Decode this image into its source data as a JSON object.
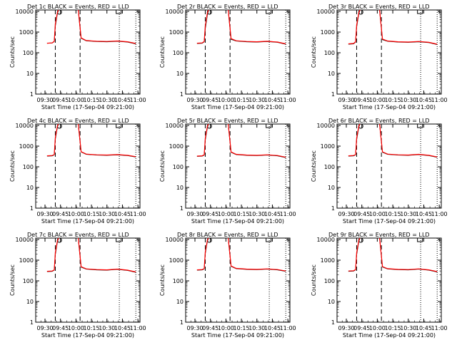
{
  "figure": {
    "xlabel": "Start Time (17-Sep-04 09:21:00)",
    "ylabel": "Counts/sec",
    "x_ticks": [
      "09:30",
      "09:45",
      "10:00",
      "10:15",
      "10:30",
      "10:45",
      "11:00"
    ],
    "y_ticks": [
      "1",
      "10",
      "100",
      "1000",
      "10000"
    ]
  },
  "chart_data": [
    {
      "type": "line",
      "title": "Det 1c BLACK = Events, RED = LLD",
      "yscale": "log",
      "ylim": [
        1,
        10000
      ],
      "x": [
        "09:32",
        "09:37",
        "09:39",
        "09:40",
        "09:42",
        "09:44",
        "09:48",
        "10:02",
        "10:05",
        "10:10",
        "10:20",
        "10:30",
        "10:40",
        "10:50",
        "10:58"
      ],
      "series": [
        {
          "name": "Events",
          "color": "#000000",
          "values": [
            290,
            300,
            350,
            2000,
            8000,
            15000,
            15000,
            15000,
            500,
            380,
            350,
            340,
            360,
            330,
            270
          ]
        },
        {
          "name": "LLD",
          "color": "#ff0000",
          "values": [
            290,
            300,
            360,
            2500,
            9000,
            15000,
            15000,
            15000,
            520,
            390,
            360,
            350,
            370,
            340,
            280
          ]
        }
      ],
      "markers": {
        "dashed": [
          "09:40",
          "10:04"
        ],
        "dotted": [
          "10:42",
          "10:58"
        ]
      }
    },
    {
      "type": "line",
      "title": "Det 2r BLACK = Events, RED = LLD",
      "yscale": "log",
      "ylim": [
        1,
        10000
      ],
      "x": [
        "09:32",
        "09:37",
        "09:39",
        "09:40",
        "09:42",
        "09:44",
        "09:48",
        "10:02",
        "10:05",
        "10:10",
        "10:20",
        "10:30",
        "10:40",
        "10:50",
        "10:58"
      ],
      "series": [
        {
          "name": "Events",
          "color": "#000000",
          "values": [
            280,
            290,
            340,
            1500,
            7000,
            15000,
            15000,
            15000,
            450,
            370,
            340,
            330,
            350,
            320,
            260
          ]
        },
        {
          "name": "LLD",
          "color": "#ff0000",
          "values": [
            290,
            300,
            350,
            2000,
            8500,
            15000,
            15000,
            15000,
            480,
            380,
            350,
            340,
            360,
            330,
            270
          ]
        }
      ],
      "markers": {
        "dashed": [
          "09:40",
          "10:04"
        ],
        "dotted": [
          "10:42",
          "10:58"
        ]
      }
    },
    {
      "type": "line",
      "title": "Det 3r BLACK = Events, RED = LLD",
      "yscale": "log",
      "ylim": [
        1,
        10000
      ],
      "x": [
        "09:32",
        "09:37",
        "09:39",
        "09:40",
        "09:42",
        "09:44",
        "09:48",
        "10:02",
        "10:05",
        "10:10",
        "10:20",
        "10:30",
        "10:40",
        "10:50",
        "10:58"
      ],
      "series": [
        {
          "name": "Events",
          "color": "#000000",
          "values": [
            260,
            270,
            330,
            1800,
            7500,
            15000,
            15000,
            15000,
            430,
            360,
            330,
            320,
            340,
            310,
            250
          ]
        },
        {
          "name": "LLD",
          "color": "#ff0000",
          "values": [
            270,
            280,
            340,
            2200,
            8500,
            15000,
            15000,
            15000,
            460,
            370,
            340,
            330,
            350,
            320,
            260
          ]
        }
      ],
      "markers": {
        "dashed": [
          "09:40",
          "10:04"
        ],
        "dotted": [
          "10:42",
          "10:58"
        ]
      }
    },
    {
      "type": "line",
      "title": "Det 4c BLACK = Events, RED = LLD",
      "yscale": "log",
      "ylim": [
        1,
        10000
      ],
      "x": [
        "09:32",
        "09:37",
        "09:39",
        "09:40",
        "09:42",
        "09:44",
        "09:48",
        "10:02",
        "10:05",
        "10:10",
        "10:20",
        "10:30",
        "10:40",
        "10:50",
        "10:58"
      ],
      "series": [
        {
          "name": "Events",
          "color": "#000000",
          "values": [
            330,
            340,
            380,
            2200,
            8500,
            15000,
            15000,
            15000,
            520,
            400,
            370,
            360,
            380,
            350,
            300
          ]
        },
        {
          "name": "LLD",
          "color": "#ff0000",
          "values": [
            340,
            350,
            390,
            2600,
            9500,
            15000,
            15000,
            15000,
            540,
            410,
            380,
            370,
            390,
            360,
            310
          ]
        }
      ],
      "markers": {
        "dashed": [
          "09:40",
          "10:04"
        ],
        "dotted": [
          "10:42",
          "10:58"
        ]
      }
    },
    {
      "type": "line",
      "title": "Det 5r BLACK = Events, RED = LLD",
      "yscale": "log",
      "ylim": [
        1,
        10000
      ],
      "x": [
        "09:32",
        "09:37",
        "09:39",
        "09:40",
        "09:42",
        "09:44",
        "09:48",
        "10:02",
        "10:05",
        "10:10",
        "10:20",
        "10:30",
        "10:40",
        "10:50",
        "10:58"
      ],
      "series": [
        {
          "name": "Events",
          "color": "#000000",
          "values": [
            320,
            330,
            370,
            2000,
            8000,
            15000,
            15000,
            15000,
            500,
            390,
            360,
            350,
            370,
            340,
            280
          ]
        },
        {
          "name": "LLD",
          "color": "#ff0000",
          "values": [
            330,
            340,
            380,
            2400,
            9000,
            15000,
            15000,
            15000,
            520,
            400,
            370,
            360,
            380,
            350,
            290
          ]
        }
      ],
      "markers": {
        "dashed": [
          "09:40",
          "10:04"
        ],
        "dotted": [
          "10:42",
          "10:58"
        ]
      }
    },
    {
      "type": "line",
      "title": "Det 6r BLACK = Events, RED = LLD",
      "yscale": "log",
      "ylim": [
        1,
        10000
      ],
      "x": [
        "09:32",
        "09:37",
        "09:39",
        "09:40",
        "09:42",
        "09:44",
        "09:48",
        "10:02",
        "10:05",
        "10:10",
        "10:20",
        "10:30",
        "10:40",
        "10:50",
        "10:58"
      ],
      "series": [
        {
          "name": "Events",
          "color": "#000000",
          "values": [
            330,
            340,
            380,
            2100,
            8200,
            15000,
            15000,
            15000,
            510,
            400,
            370,
            360,
            390,
            350,
            290
          ]
        },
        {
          "name": "LLD",
          "color": "#ff0000",
          "values": [
            340,
            350,
            390,
            2500,
            9200,
            15000,
            15000,
            15000,
            530,
            410,
            380,
            370,
            400,
            360,
            300
          ]
        }
      ],
      "markers": {
        "dashed": [
          "09:40",
          "10:04"
        ],
        "dotted": [
          "10:42",
          "10:58"
        ]
      }
    },
    {
      "type": "line",
      "title": "Det 7c BLACK = Events, RED = LLD",
      "yscale": "log",
      "ylim": [
        1,
        10000
      ],
      "x": [
        "09:32",
        "09:37",
        "09:39",
        "09:40",
        "09:42",
        "09:44",
        "09:48",
        "10:02",
        "10:05",
        "10:10",
        "10:20",
        "10:30",
        "10:40",
        "10:50",
        "10:58"
      ],
      "series": [
        {
          "name": "Events",
          "color": "#000000",
          "values": [
            280,
            290,
            330,
            1900,
            7800,
            15000,
            15000,
            15000,
            460,
            370,
            340,
            330,
            360,
            320,
            260
          ]
        },
        {
          "name": "LLD",
          "color": "#ff0000",
          "values": [
            290,
            300,
            340,
            2300,
            8800,
            15000,
            15000,
            15000,
            480,
            380,
            350,
            340,
            370,
            330,
            270
          ]
        }
      ],
      "markers": {
        "dashed": [
          "09:40",
          "10:04"
        ],
        "dotted": [
          "10:42",
          "10:58"
        ]
      }
    },
    {
      "type": "line",
      "title": "Det 8r BLACK = Events, RED = LLD",
      "yscale": "log",
      "ylim": [
        1,
        10000
      ],
      "x": [
        "09:32",
        "09:37",
        "09:39",
        "09:40",
        "09:42",
        "09:44",
        "09:48",
        "10:02",
        "10:05",
        "10:10",
        "10:20",
        "10:30",
        "10:40",
        "10:50",
        "10:58"
      ],
      "series": [
        {
          "name": "Events",
          "color": "#000000",
          "values": [
            330,
            340,
            380,
            2100,
            8300,
            15000,
            15000,
            15000,
            500,
            390,
            360,
            350,
            370,
            340,
            290
          ]
        },
        {
          "name": "LLD",
          "color": "#ff0000",
          "values": [
            340,
            350,
            390,
            2500,
            9300,
            15000,
            15000,
            15000,
            520,
            400,
            370,
            360,
            380,
            350,
            300
          ]
        }
      ],
      "markers": {
        "dashed": [
          "09:40",
          "10:04"
        ],
        "dotted": [
          "10:42",
          "10:58"
        ]
      }
    },
    {
      "type": "line",
      "title": "Det 9r BLACK = Events, RED = LLD",
      "yscale": "log",
      "ylim": [
        1,
        10000
      ],
      "x": [
        "09:32",
        "09:37",
        "09:39",
        "09:40",
        "09:42",
        "09:44",
        "09:48",
        "10:02",
        "10:05",
        "10:10",
        "10:20",
        "10:30",
        "10:40",
        "10:50",
        "10:58"
      ],
      "series": [
        {
          "name": "Events",
          "color": "#000000",
          "values": [
            290,
            300,
            340,
            1900,
            7900,
            15000,
            15000,
            15000,
            470,
            380,
            350,
            340,
            370,
            330,
            270
          ]
        },
        {
          "name": "LLD",
          "color": "#ff0000",
          "values": [
            300,
            310,
            350,
            2300,
            8900,
            15000,
            15000,
            15000,
            490,
            390,
            360,
            350,
            380,
            340,
            280
          ]
        }
      ],
      "markers": {
        "dashed": [
          "09:40",
          "10:04"
        ],
        "dotted": [
          "10:42",
          "10:58"
        ]
      }
    }
  ]
}
